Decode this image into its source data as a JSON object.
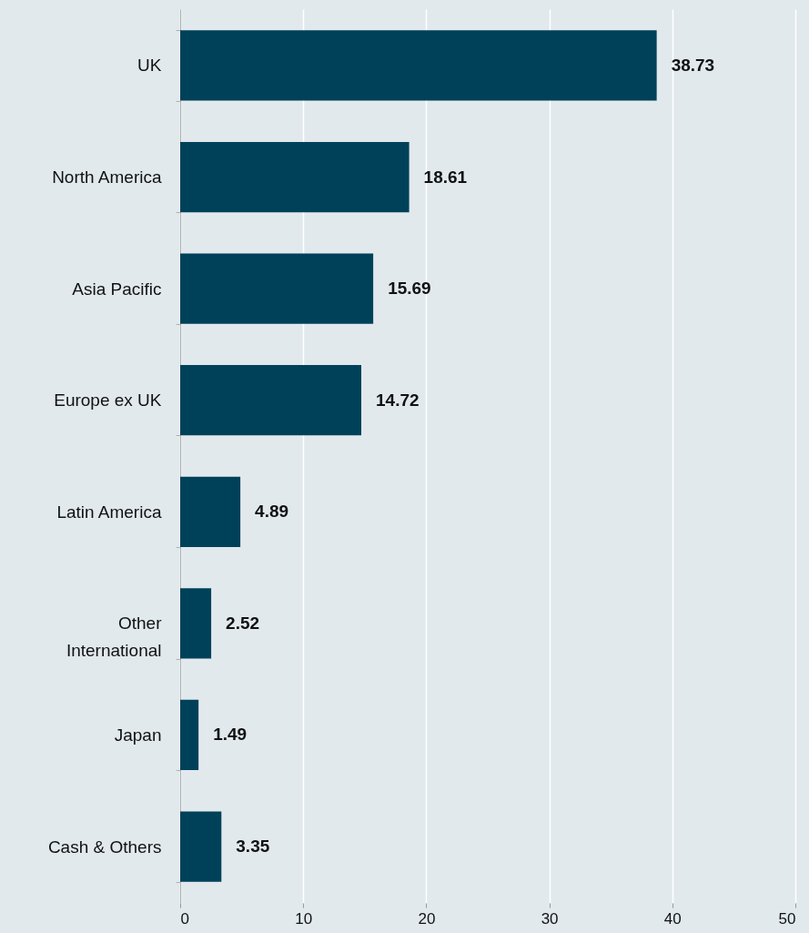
{
  "chart_data": {
    "type": "bar",
    "orientation": "horizontal",
    "categories": [
      "UK",
      "North America",
      "Asia Pacific",
      "Europe ex UK",
      "Latin America",
      "Other International",
      "Japan",
      "Cash & Others"
    ],
    "values": [
      38.73,
      18.61,
      15.69,
      14.72,
      4.89,
      2.52,
      1.49,
      3.35
    ],
    "color": "#00415a",
    "xlim": [
      0,
      50
    ],
    "xticks": [
      0,
      10,
      20,
      30,
      40,
      50
    ],
    "grid": "x",
    "data_labels": true
  }
}
